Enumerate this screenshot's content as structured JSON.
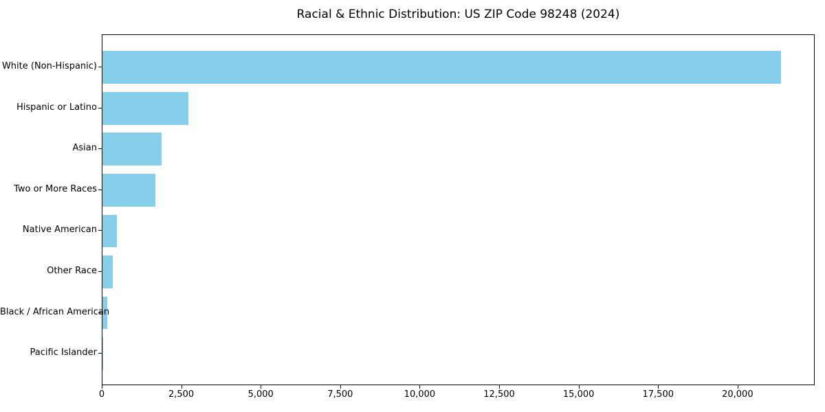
{
  "chart_data": {
    "type": "bar",
    "orientation": "horizontal",
    "title": "Racial & Ethnic Distribution: US ZIP Code 98248 (2024)",
    "xlabel": "",
    "ylabel": "",
    "categories": [
      "White (Non-Hispanic)",
      "Hispanic or Latino",
      "Asian",
      "Two or More Races",
      "Native American",
      "Other Race",
      "Black / African American",
      "Pacific Islander"
    ],
    "values": [
      21350,
      2710,
      1870,
      1660,
      450,
      320,
      150,
      15
    ],
    "xlim": [
      0,
      22425
    ],
    "xticks": [
      {
        "value": 0,
        "label": "0"
      },
      {
        "value": 2500,
        "label": "2,500"
      },
      {
        "value": 5000,
        "label": "5,000"
      },
      {
        "value": 7500,
        "label": "7,500"
      },
      {
        "value": 10000,
        "label": "10,000"
      },
      {
        "value": 12500,
        "label": "12,500"
      },
      {
        "value": 15000,
        "label": "15,000"
      },
      {
        "value": 17500,
        "label": "17,500"
      },
      {
        "value": 20000,
        "label": "20,000"
      }
    ],
    "bar_color": "#87CEEB",
    "axis_color": "#000000",
    "text_color": "#000000",
    "grid": false,
    "legend": null
  }
}
